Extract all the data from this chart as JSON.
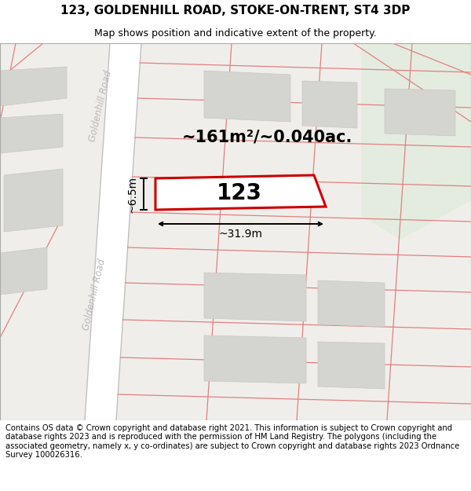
{
  "title": "123, GOLDENHILL ROAD, STOKE-ON-TRENT, ST4 3DP",
  "subtitle": "Map shows position and indicative extent of the property.",
  "area_text": "~161m²/~0.040ac.",
  "width_label": "~31.9m",
  "height_label": "~6.5m",
  "road_label_top": "Goldenhill Road",
  "road_label_bottom": "Goldenhill Road",
  "plot_number": "123",
  "footer": "Contains OS data © Crown copyright and database right 2021. This information is subject to Crown copyright and database rights 2023 and is reproduced with the permission of HM Land Registry. The polygons (including the associated geometry, namely x, y co-ordinates) are subject to Crown copyright and database rights 2023 Ordnance Survey 100026316.",
  "map_bg": "#f0eeea",
  "road_fill": "#ffffff",
  "building_fill": "#d4d4d0",
  "building_edge": "#c8c8c4",
  "highlight_color": "#cc0000",
  "highlight_fill": "#ffffff",
  "cadastral_color": "#e08080",
  "road_edge_color": "#c0c0c0",
  "title_fontsize": 11,
  "subtitle_fontsize": 9,
  "footer_fontsize": 7.2,
  "road_label_color": "#b8b8b8",
  "green_fill": "#e4ece0"
}
